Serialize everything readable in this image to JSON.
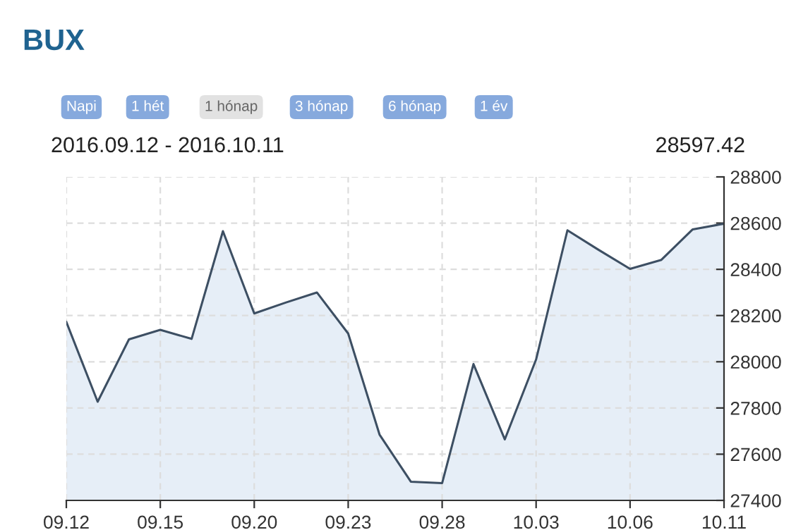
{
  "chart_data": {
    "type": "area",
    "title": "BUX",
    "annotations": [
      "Napi",
      "1 hét",
      "1 hónap",
      "3 hónap",
      "6 hónap",
      "1 év",
      "2016.09.12 - 2016.10.11",
      "28597.42"
    ],
    "categories": [
      "09.12",
      null,
      null,
      "09.15",
      null,
      null,
      "09.20",
      null,
      null,
      "09.23",
      null,
      null,
      "09.28",
      null,
      null,
      "10.03",
      null,
      null,
      "10.06",
      null,
      null,
      "10.11"
    ],
    "series": [
      {
        "color": "#3d4f63",
        "values": [
          28172,
          27827,
          28097,
          28138,
          28099,
          28565,
          28209,
          28256,
          28300,
          28122,
          27685,
          27481,
          27475,
          27990,
          27664,
          28010,
          28569,
          28484,
          28402,
          28441,
          28573,
          28597.42
        ]
      }
    ],
    "ylim": [
      27400,
      28800
    ],
    "yticks": [
      27400,
      27600,
      27800,
      28000,
      28200,
      28400,
      28600,
      28800
    ],
    "grid": true,
    "marker": "none",
    "line_style": "solid"
  }
}
